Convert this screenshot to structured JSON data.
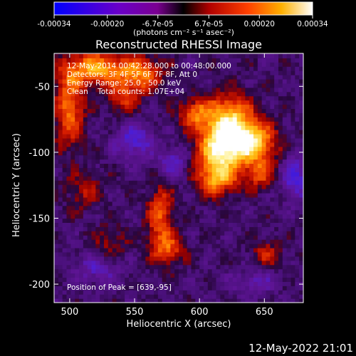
{
  "chart_data": {
    "type": "heatmap",
    "title": "Reconstructed RHESSI Image",
    "xlabel": "Heliocentric X (arcsec)",
    "ylabel": "Heliocentric Y (arcsec)",
    "xlim": [
      488,
      680
    ],
    "ylim": [
      -214,
      -25
    ],
    "x_ticks": [
      500,
      550,
      600,
      650
    ],
    "y_ticks": [
      -50,
      -100,
      -150,
      -200
    ],
    "colorbar": {
      "tick_labels": [
        "-0.00034",
        "-0.00020",
        "-6.7e-05",
        "6.7e-05",
        "0.00020",
        "0.00034"
      ],
      "tick_values": [
        -0.00034,
        -0.0002,
        -6.7e-05,
        6.7e-05,
        0.0002,
        0.00034
      ],
      "units_label": "(photons cm⁻² s⁻¹ asec⁻²)",
      "range": [
        -0.00034,
        0.00034
      ]
    },
    "annotations": [
      "12-May-2014 00:42:28.000 to 00:48:00.000",
      "Detectors: 3F 4F 5F 6F 7F 8F, Att 0",
      "Energy Range: 25.0 - 50.0 keV",
      "Clean    Total counts: 1.07E+04"
    ],
    "peak_label": "Position of Peak = [639,-95]",
    "peak_position": [
      639,
      -95
    ],
    "blobs": [
      {
        "x": 636,
        "y": -94,
        "sx": 14,
        "sy": 11,
        "a": 1.0
      },
      {
        "x": 612,
        "y": -100,
        "sx": 12,
        "sy": 14,
        "a": 0.8
      },
      {
        "x": 622,
        "y": -75,
        "sx": 12,
        "sy": 13,
        "a": 0.75
      },
      {
        "x": 596,
        "y": -72,
        "sx": 9,
        "sy": 8,
        "a": 0.55
      },
      {
        "x": 612,
        "y": -122,
        "sx": 11,
        "sy": 9,
        "a": 0.6
      },
      {
        "x": 645,
        "y": -118,
        "sx": 8,
        "sy": 8,
        "a": 0.45
      },
      {
        "x": 520,
        "y": -38,
        "sx": 18,
        "sy": 9,
        "a": 0.75
      },
      {
        "x": 555,
        "y": -42,
        "sx": 11,
        "sy": 9,
        "a": 0.55
      },
      {
        "x": 498,
        "y": -68,
        "sx": 8,
        "sy": 20,
        "a": 0.6
      },
      {
        "x": 540,
        "y": -60,
        "sx": 9,
        "sy": 9,
        "a": 0.4
      },
      {
        "x": 568,
        "y": -150,
        "sx": 7,
        "sy": 18,
        "a": 0.55
      },
      {
        "x": 575,
        "y": -175,
        "sx": 9,
        "sy": 8,
        "a": 0.45
      },
      {
        "x": 510,
        "y": -130,
        "sx": 10,
        "sy": 10,
        "a": 0.3
      },
      {
        "x": 650,
        "y": -178,
        "sx": 8,
        "sy": 7,
        "a": 0.35
      },
      {
        "x": 530,
        "y": -170,
        "sx": 9,
        "sy": 10,
        "a": 0.25
      }
    ],
    "cool_spots": [
      {
        "x": 548,
        "y": -92,
        "sx": 10,
        "sy": 10,
        "a": 0.45
      },
      {
        "x": 578,
        "y": -110,
        "sx": 9,
        "sy": 9,
        "a": 0.4
      },
      {
        "x": 672,
        "y": -120,
        "sx": 7,
        "sy": 12,
        "a": 0.5
      },
      {
        "x": 520,
        "y": -190,
        "sx": 12,
        "sy": 8,
        "a": 0.35
      },
      {
        "x": 640,
        "y": -200,
        "sx": 12,
        "sy": 6,
        "a": 0.3
      }
    ]
  },
  "footer_timestamp": "12-May-2022 21:01"
}
